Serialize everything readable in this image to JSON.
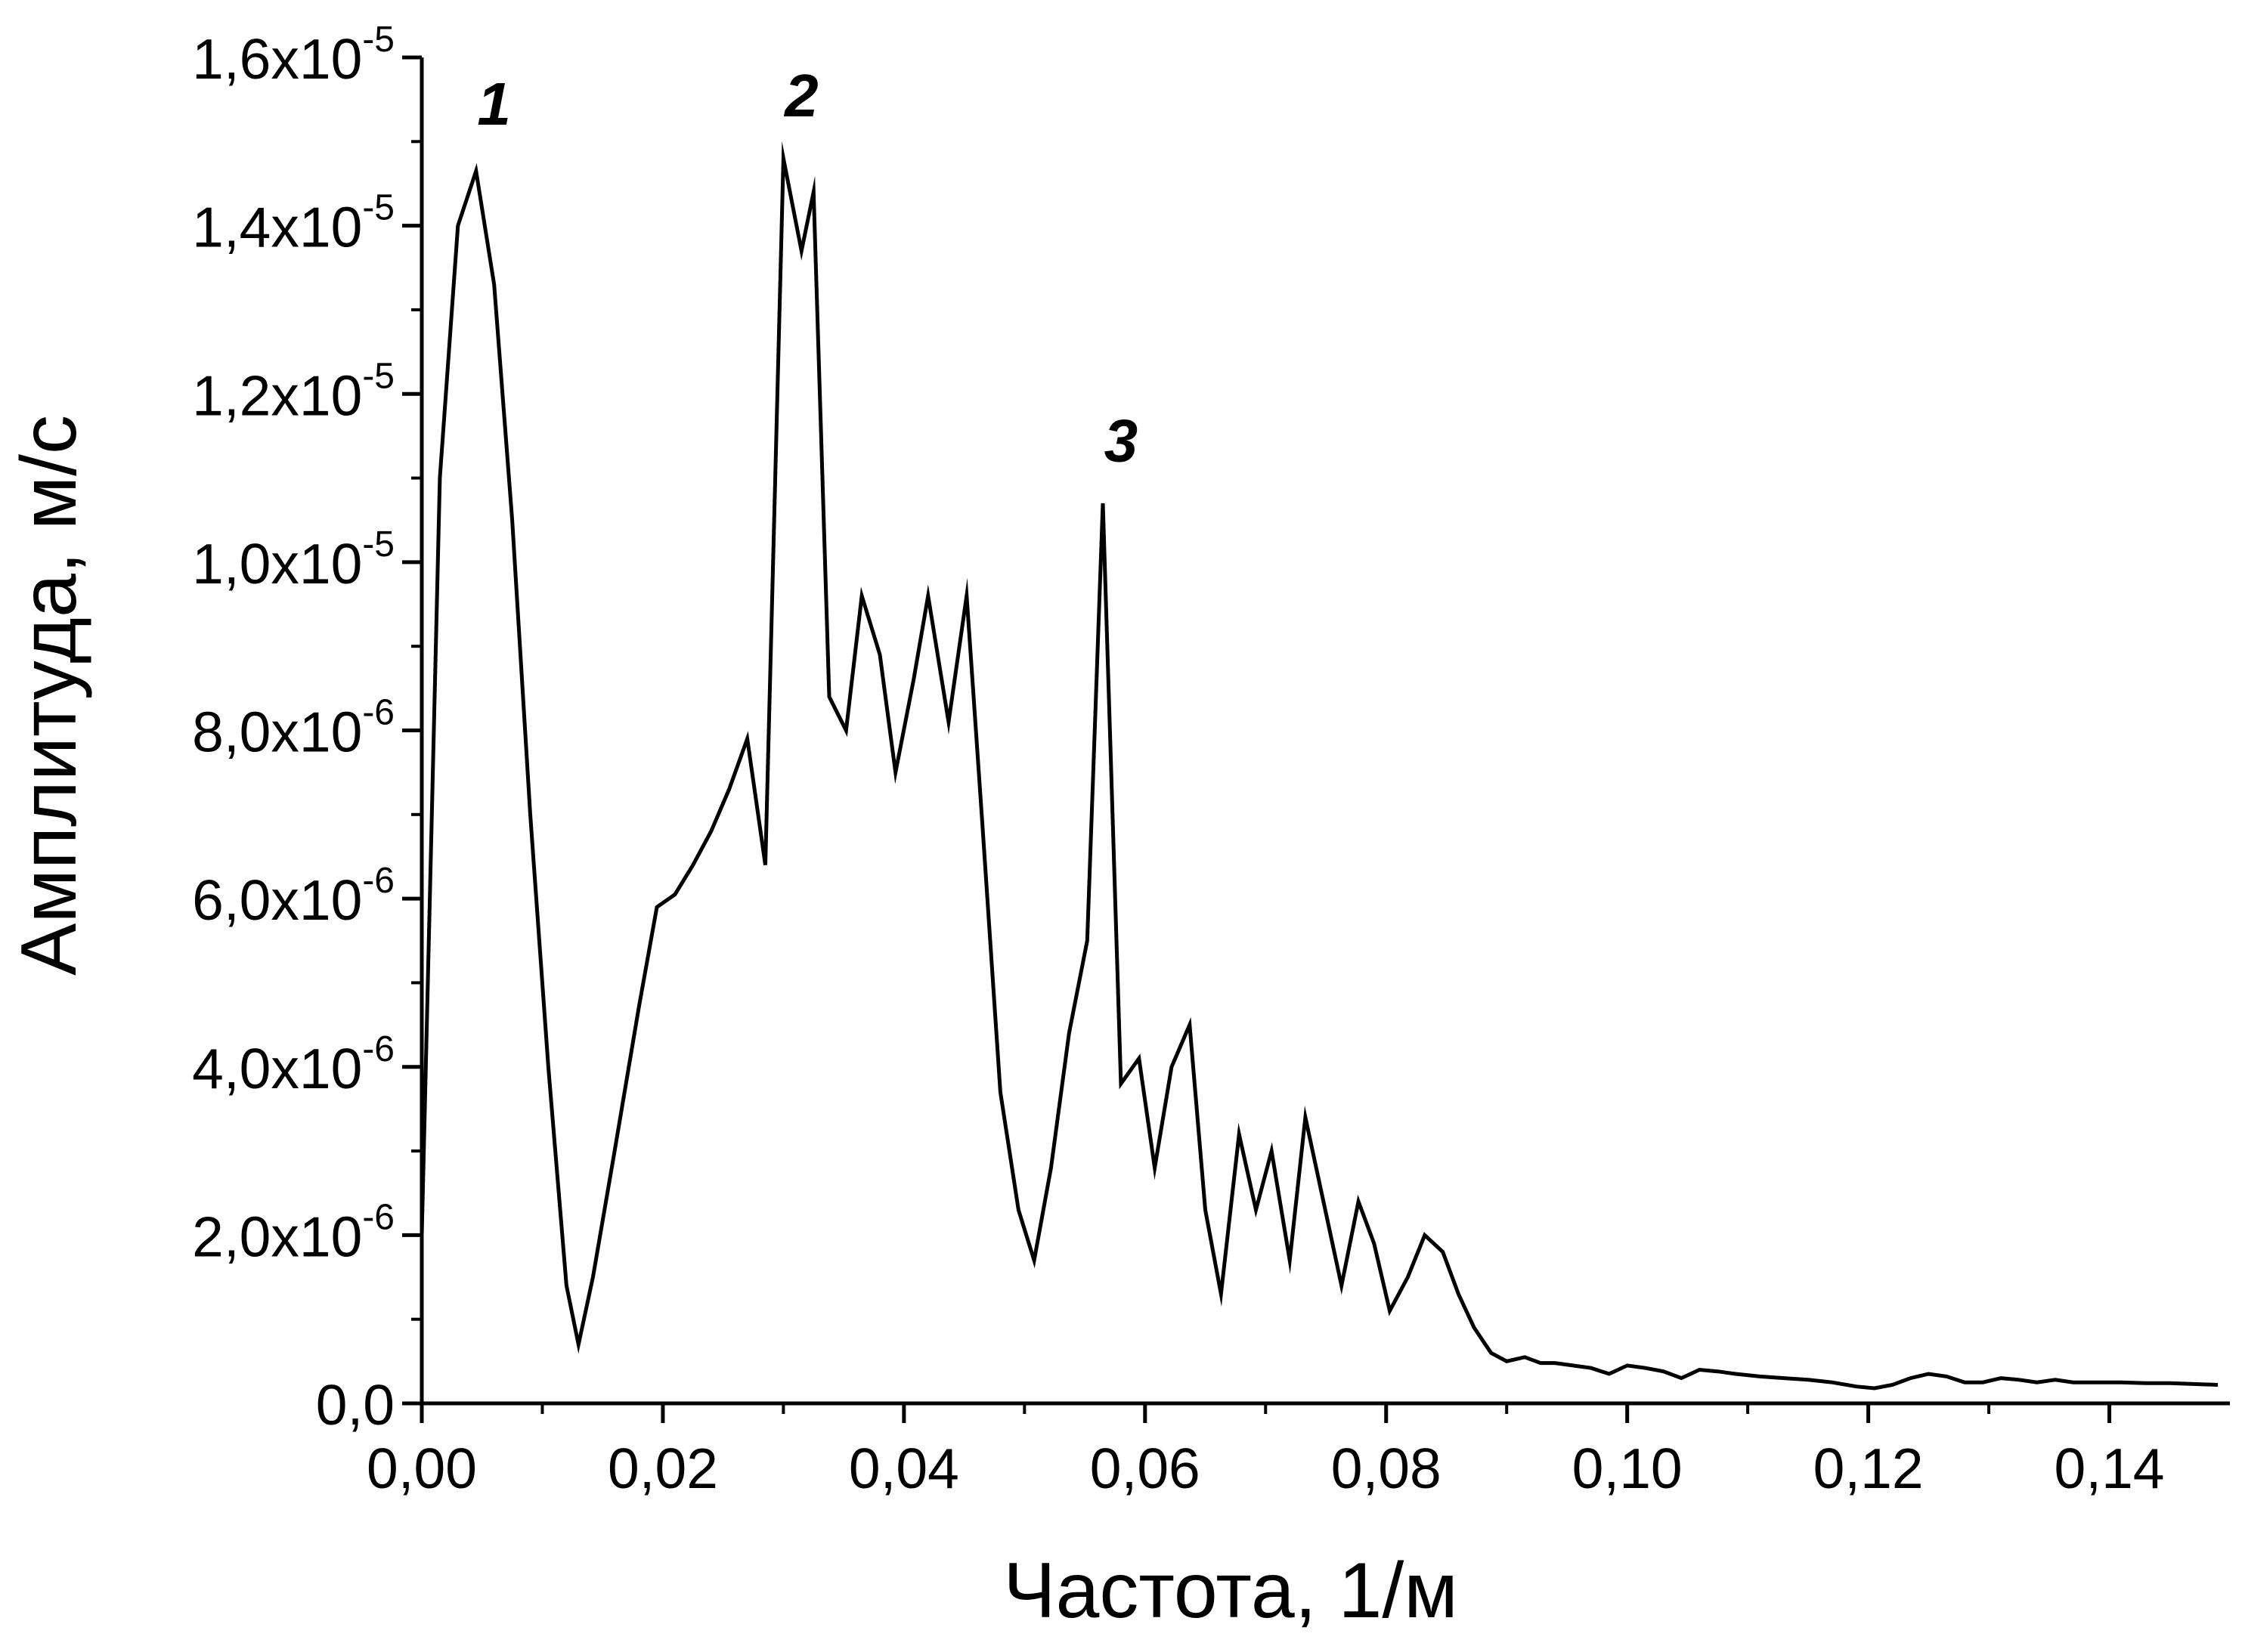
{
  "chart_data": {
    "type": "line",
    "xlabel": "Частота, 1/м",
    "ylabel": "Амплитуда, м/с",
    "xlim": [
      0,
      0.15
    ],
    "ylim": [
      0,
      1.6e-05
    ],
    "grid": false,
    "legend": "none",
    "line_color": "#000000",
    "x_ticks": [
      0,
      0.02,
      0.04,
      0.06,
      0.08,
      0.1,
      0.12,
      0.14
    ],
    "x_tick_labels": [
      "0,00",
      "0,02",
      "0,04",
      "0,06",
      "0,08",
      "0,10",
      "0,12",
      "0,14"
    ],
    "y_ticks": [
      {
        "value": 0,
        "mantissa": "0,0",
        "exponent": ""
      },
      {
        "value": 2e-06,
        "mantissa": "2,0x10",
        "exponent": "-6"
      },
      {
        "value": 4e-06,
        "mantissa": "4,0x10",
        "exponent": "-6"
      },
      {
        "value": 6e-06,
        "mantissa": "6,0x10",
        "exponent": "-6"
      },
      {
        "value": 8e-06,
        "mantissa": "8,0x10",
        "exponent": "-6"
      },
      {
        "value": 1e-05,
        "mantissa": "1,0x10",
        "exponent": "-5"
      },
      {
        "value": 1.2e-05,
        "mantissa": "1,2x10",
        "exponent": "-5"
      },
      {
        "value": 1.4e-05,
        "mantissa": "1,4x10",
        "exponent": "-5"
      },
      {
        "value": 1.6e-05,
        "mantissa": "1,6x10",
        "exponent": "-5"
      }
    ],
    "annotations": [
      {
        "text": "1",
        "x": 0.006,
        "y": 1.52e-05
      },
      {
        "text": "2",
        "x": 0.0315,
        "y": 1.53e-05
      },
      {
        "text": "3",
        "x": 0.058,
        "y": 1.12e-05
      }
    ],
    "series": [
      {
        "x": [
          0.0,
          0.0015,
          0.003,
          0.0045,
          0.006,
          0.0075,
          0.009,
          0.0105,
          0.012,
          0.013,
          0.0142,
          0.016,
          0.018,
          0.0195,
          0.021,
          0.0225,
          0.024,
          0.0255,
          0.027,
          0.0285,
          0.03,
          0.0315,
          0.0325,
          0.0338,
          0.0352,
          0.0365,
          0.038,
          0.0393,
          0.0408,
          0.042,
          0.0437,
          0.0452,
          0.0465,
          0.048,
          0.0495,
          0.0508,
          0.0522,
          0.0537,
          0.0552,
          0.0565,
          0.058,
          0.0595,
          0.0608,
          0.0622,
          0.0637,
          0.065,
          0.0663,
          0.0678,
          0.0692,
          0.0705,
          0.072,
          0.0733,
          0.0748,
          0.0763,
          0.0777,
          0.079,
          0.0803,
          0.0818,
          0.0832,
          0.0847,
          0.086,
          0.0873,
          0.0887,
          0.09,
          0.0915,
          0.0928,
          0.094,
          0.0955,
          0.097,
          0.0985,
          0.1,
          0.1015,
          0.103,
          0.1045,
          0.106,
          0.1075,
          0.109,
          0.111,
          0.113,
          0.115,
          0.117,
          0.119,
          0.1205,
          0.122,
          0.1235,
          0.125,
          0.1265,
          0.128,
          0.1295,
          0.131,
          0.1325,
          0.134,
          0.1355,
          0.137,
          0.139,
          0.141,
          0.143,
          0.145,
          0.147,
          0.149
        ],
        "y": [
          2e-06,
          1.1e-05,
          1.4e-05,
          1.465e-05,
          1.33e-05,
          1.05e-05,
          7e-06,
          4e-06,
          1.4e-06,
          7e-07,
          1.5e-06,
          3e-06,
          4.7e-06,
          5.9e-06,
          6.05e-06,
          6.4e-06,
          6.8e-06,
          7.3e-06,
          7.9e-06,
          6.4e-06,
          1.48e-05,
          1.37e-05,
          1.44e-05,
          8.4e-06,
          8e-06,
          9.6e-06,
          8.9e-06,
          7.5e-06,
          8.6e-06,
          9.6e-06,
          8.1e-06,
          9.6e-06,
          6.9e-06,
          3.7e-06,
          2.3e-06,
          1.7e-06,
          2.8e-06,
          4.4e-06,
          5.5e-06,
          1.07e-05,
          3.8e-06,
          4.1e-06,
          2.8e-06,
          4e-06,
          4.5e-06,
          2.3e-06,
          1.3e-06,
          3.2e-06,
          2.3e-06,
          3e-06,
          1.7e-06,
          3.4e-06,
          2.4e-06,
          1.4e-06,
          2.4e-06,
          1.9e-06,
          1.1e-06,
          1.5e-06,
          2e-06,
          1.8e-06,
          1.3e-06,
          9e-07,
          6e-07,
          5e-07,
          5.5e-07,
          4.8e-07,
          4.8e-07,
          4.5e-07,
          4.2e-07,
          3.5e-07,
          4.5e-07,
          4.2e-07,
          3.8e-07,
          3e-07,
          4e-07,
          3.8e-07,
          3.5e-07,
          3.2e-07,
          3e-07,
          2.8e-07,
          2.5e-07,
          2e-07,
          1.8e-07,
          2.2e-07,
          3e-07,
          3.5e-07,
          3.2e-07,
          2.5e-07,
          2.5e-07,
          3e-07,
          2.8e-07,
          2.5e-07,
          2.8e-07,
          2.5e-07,
          2.5e-07,
          2.5e-07,
          2.4e-07,
          2.4e-07,
          2.3e-07,
          2.2e-07
        ]
      }
    ]
  }
}
